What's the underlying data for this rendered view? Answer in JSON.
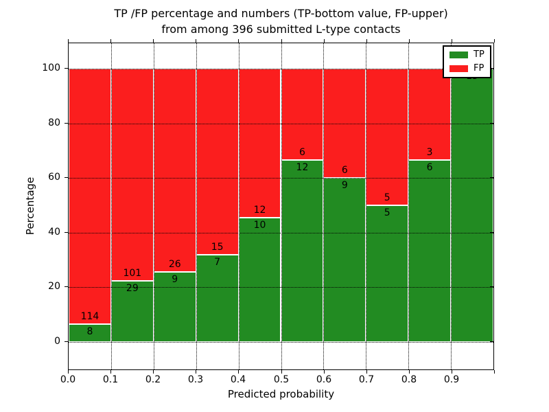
{
  "chart_data": {
    "type": "bar",
    "stacked": true,
    "title_line1": "TP /FP percentage and numbers (TP-bottom value, FP-upper)",
    "title_line2": "from among 396 submitted L-type contacts",
    "xlabel": "Predicted probability",
    "ylabel": "Percentage",
    "x_tick_labels": [
      "0.0",
      "0.1",
      "0.2",
      "0.3",
      "0.4",
      "0.5",
      "0.6",
      "0.7",
      "0.8",
      "0.9"
    ],
    "y_tick_labels": [
      "0",
      "20",
      "40",
      "60",
      "80",
      "100"
    ],
    "y_tick_values": [
      0,
      20,
      40,
      60,
      80,
      100
    ],
    "xlim": [
      0.0,
      1.0
    ],
    "ylim": [
      -10.5,
      109.5
    ],
    "grid": true,
    "bar_width": 0.1,
    "series": [
      {
        "name": "TP",
        "color": "#228b22",
        "counts": [
          8,
          29,
          9,
          7,
          10,
          12,
          9,
          5,
          6,
          13
        ]
      },
      {
        "name": "FP",
        "color": "#fb1e1e",
        "counts": [
          114,
          101,
          26,
          15,
          12,
          6,
          6,
          5,
          3,
          0
        ]
      }
    ],
    "tp_percent": [
      6.6,
      22.3,
      25.7,
      31.8,
      45.5,
      66.7,
      60.0,
      50.0,
      66.7,
      100.0
    ],
    "legend": {
      "position": "upper right",
      "entries": [
        {
          "label": "TP",
          "color": "#228b22"
        },
        {
          "label": "FP",
          "color": "#fb1e1e"
        }
      ]
    }
  }
}
